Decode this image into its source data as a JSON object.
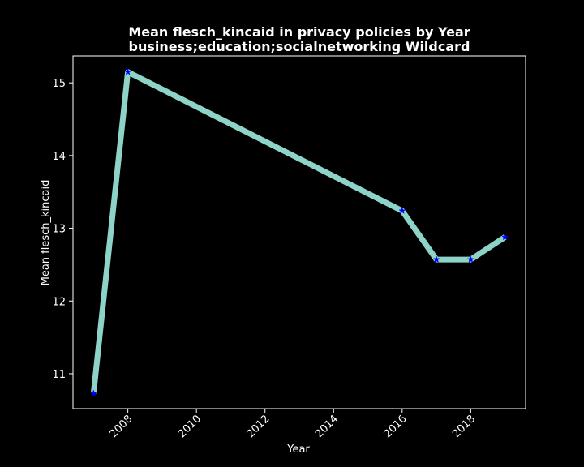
{
  "chart_data": {
    "type": "line",
    "title": "Mean flesch_kincaid in privacy policies by Year",
    "subtitle": "business;education;socialnetworking Wildcard",
    "xlabel": "Year",
    "ylabel": "Mean flesch_kincaid",
    "xlim": [
      2006.4,
      2019.6
    ],
    "ylim": [
      10.52,
      15.37
    ],
    "x_ticks": [
      2008,
      2010,
      2012,
      2014,
      2016,
      2018
    ],
    "y_ticks": [
      11,
      12,
      13,
      14,
      15
    ],
    "grid": false,
    "legend": false,
    "background_color": "#000000",
    "axes_color": "#ffffff",
    "series": [
      {
        "color": "#8dd3c7",
        "marker": "star",
        "marker_color": "#0000ff",
        "points": [
          {
            "x": 2007,
            "y": 10.73
          },
          {
            "x": 2008,
            "y": 15.15
          },
          {
            "x": 2016,
            "y": 13.24
          },
          {
            "x": 2017,
            "y": 12.57
          },
          {
            "x": 2018,
            "y": 12.57
          },
          {
            "x": 2019,
            "y": 12.88
          }
        ]
      }
    ]
  }
}
